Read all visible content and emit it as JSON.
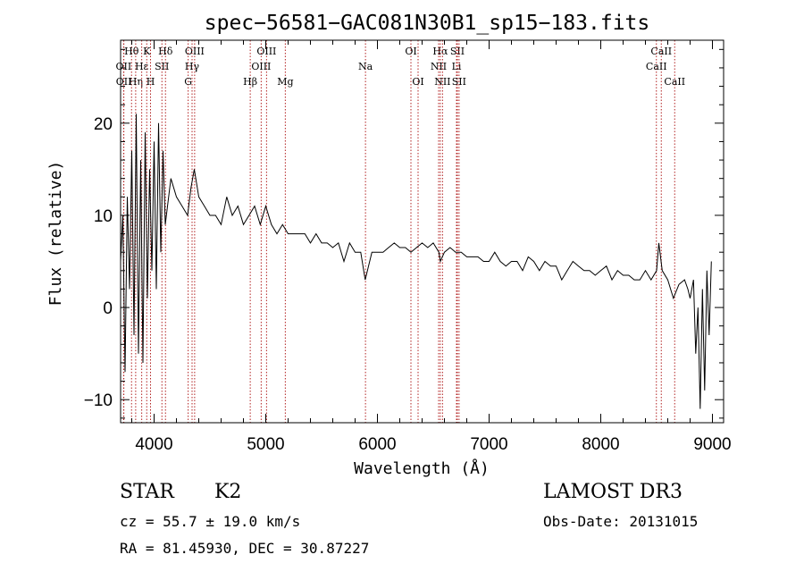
{
  "chart_data": {
    "type": "line",
    "title": "spec−56581−GAC081N30B1_sp15−183.fits",
    "xlabel": "Wavelength (Å)",
    "ylabel": "Flux (relative)",
    "xlim": [
      3700,
      9100
    ],
    "ylim": [
      -12.5,
      29
    ],
    "xticks": [
      4000,
      5000,
      6000,
      7000,
      8000,
      9000
    ],
    "yticks": [
      -10,
      0,
      10,
      20
    ],
    "ytick_labels": [
      "−10",
      "0",
      "10",
      "20"
    ],
    "series": [
      {
        "name": "flux",
        "x": [
          3700,
          3720,
          3740,
          3760,
          3780,
          3800,
          3820,
          3840,
          3860,
          3880,
          3900,
          3920,
          3940,
          3960,
          3980,
          4000,
          4020,
          4040,
          4060,
          4080,
          4100,
          4150,
          4200,
          4250,
          4300,
          4330,
          4360,
          4400,
          4450,
          4500,
          4550,
          4600,
          4650,
          4700,
          4750,
          4800,
          4850,
          4900,
          4950,
          5000,
          5050,
          5100,
          5150,
          5200,
          5250,
          5300,
          5350,
          5400,
          5450,
          5500,
          5550,
          5600,
          5650,
          5700,
          5750,
          5800,
          5850,
          5890,
          5950,
          6000,
          6050,
          6100,
          6150,
          6200,
          6250,
          6300,
          6350,
          6400,
          6450,
          6500,
          6550,
          6563,
          6600,
          6650,
          6700,
          6750,
          6800,
          6850,
          6900,
          6950,
          7000,
          7050,
          7100,
          7150,
          7200,
          7250,
          7300,
          7350,
          7400,
          7450,
          7500,
          7550,
          7600,
          7650,
          7700,
          7750,
          7800,
          7850,
          7900,
          7950,
          8000,
          8050,
          8100,
          8150,
          8200,
          8250,
          8300,
          8350,
          8400,
          8450,
          8500,
          8520,
          8550,
          8600,
          8650,
          8700,
          8750,
          8780,
          8800,
          8830,
          8850,
          8870,
          8890,
          8910,
          8930,
          8950,
          8970,
          8990
        ],
        "y": [
          5,
          10,
          -7,
          12,
          2,
          17,
          -3,
          21,
          -5,
          16,
          -6,
          19,
          1,
          15,
          4,
          18,
          2,
          20,
          6,
          17,
          9,
          14,
          12,
          11,
          10,
          13,
          15,
          12,
          11,
          10,
          10,
          9,
          12,
          10,
          11,
          9,
          10,
          11,
          9,
          11,
          9,
          8,
          9,
          8,
          8,
          8,
          8,
          7,
          8,
          7,
          7,
          6.5,
          7,
          5,
          7,
          6,
          6,
          3,
          6,
          6,
          6,
          6.5,
          7,
          6.5,
          6.5,
          6,
          6.5,
          7,
          6.5,
          7,
          6,
          5,
          6,
          6.5,
          6,
          6,
          5.5,
          5.5,
          5.5,
          5,
          5,
          6,
          5,
          4.5,
          5,
          5,
          4,
          5.5,
          5,
          4,
          5,
          4.5,
          4.5,
          3,
          4,
          5,
          4.5,
          4,
          4,
          3.5,
          4,
          4.5,
          3,
          4,
          3.5,
          3.5,
          3,
          3,
          4,
          3,
          4,
          7,
          4,
          3,
          1,
          2.5,
          3,
          2,
          1,
          3,
          -5,
          0,
          -11,
          2,
          -9,
          4,
          -3,
          5
        ]
      }
    ],
    "lines": [
      {
        "name": "Hθ",
        "wave": 3798,
        "row": 1
      },
      {
        "name": "OII",
        "wave": 3727,
        "row": 2
      },
      {
        "name": "OII",
        "wave": 3729,
        "row": 3
      },
      {
        "name": "Hη",
        "wave": 3835,
        "row": 3
      },
      {
        "name": "K",
        "wave": 3934,
        "row": 1
      },
      {
        "name": "Hε",
        "wave": 3889,
        "row": 2
      },
      {
        "name": "H",
        "wave": 3968,
        "row": 3
      },
      {
        "name": "SII",
        "wave": 4070,
        "row": 2
      },
      {
        "name": "Hδ",
        "wave": 4102,
        "row": 1
      },
      {
        "name": "OIII",
        "wave": 4363,
        "row": 1
      },
      {
        "name": "Hγ",
        "wave": 4340,
        "row": 2
      },
      {
        "name": "G",
        "wave": 4305,
        "row": 3
      },
      {
        "name": "Hβ",
        "wave": 4861,
        "row": 3
      },
      {
        "name": "OIII",
        "wave": 5007,
        "row": 1
      },
      {
        "name": "OIII",
        "wave": 4959,
        "row": 2
      },
      {
        "name": "Mg",
        "wave": 5175,
        "row": 3
      },
      {
        "name": "Na",
        "wave": 5893,
        "row": 2
      },
      {
        "name": "OI",
        "wave": 6300,
        "row": 1
      },
      {
        "name": "OI",
        "wave": 6364,
        "row": 3
      },
      {
        "name": "Hα",
        "wave": 6563,
        "row": 1
      },
      {
        "name": "NII",
        "wave": 6548,
        "row": 2
      },
      {
        "name": "NII",
        "wave": 6583,
        "row": 3
      },
      {
        "name": "SII",
        "wave": 6716,
        "row": 1
      },
      {
        "name": "Li",
        "wave": 6708,
        "row": 2
      },
      {
        "name": "SII",
        "wave": 6731,
        "row": 3
      },
      {
        "name": "CaII",
        "wave": 8542,
        "row": 1
      },
      {
        "name": "CaII",
        "wave": 8498,
        "row": 2
      },
      {
        "name": "CaII",
        "wave": 8662,
        "row": 3
      }
    ],
    "grid": false,
    "legend": "none"
  },
  "info": {
    "class": "STAR",
    "subclass": "K2",
    "cz": "cz = 55.7 ± 19.0 km/s",
    "radec": "RA =  81.45930, DEC =  30.87227",
    "survey": "LAMOST DR3",
    "obs_date": "Obs-Date: 20131015"
  }
}
